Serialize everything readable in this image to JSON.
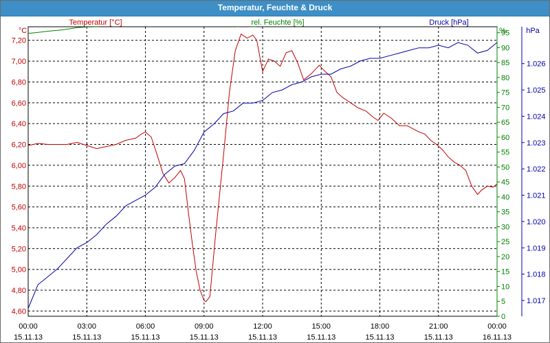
{
  "window": {
    "title": "Temperatur, Feuchte & Druck"
  },
  "chart_data": {
    "type": "line",
    "title": "Temperatur, Feuchte & Druck",
    "grid": true,
    "x_tick_labels": [
      {
        "time": "00:00",
        "date": "15.11.13"
      },
      {
        "time": "03:00",
        "date": "15.11.13"
      },
      {
        "time": "06:00",
        "date": "15.11.13"
      },
      {
        "time": "09:00",
        "date": "15.11.13"
      },
      {
        "time": "12:00",
        "date": "15.11.13"
      },
      {
        "time": "15:00",
        "date": "15.11.13"
      },
      {
        "time": "18:00",
        "date": "15.11.13"
      },
      {
        "time": "21:00",
        "date": "15.11.13"
      },
      {
        "time": "00:00",
        "date": "16.11.13"
      }
    ],
    "xlim": [
      0,
      24
    ],
    "axes": {
      "temperature": {
        "unit": "°C",
        "color": "#c00000",
        "ylim": [
          4.55,
          7.33
        ],
        "ticks": [
          "7,20",
          "7,00",
          "6,80",
          "6,60",
          "6,40",
          "6,20",
          "6,00",
          "5,80",
          "5,60",
          "5,40",
          "5,20",
          "5,00",
          "4,80",
          "4,60"
        ]
      },
      "humidity": {
        "unit": "%",
        "color": "#008000",
        "ylim": [
          0,
          97
        ],
        "ticks": [
          "95",
          "90",
          "85",
          "80",
          "75",
          "70",
          "65",
          "60",
          "55",
          "50",
          "45",
          "40",
          "35",
          "30",
          "25",
          "20",
          "15",
          "10",
          "5",
          "0"
        ]
      },
      "pressure": {
        "unit": "hPa",
        "color": "#0000aa",
        "ylim": [
          1.0164,
          1.0274
        ],
        "ticks": [
          "1.026",
          "1.025",
          "1.024",
          "1.023",
          "1.022",
          "1.021",
          "1.020",
          "1.019",
          "1.018",
          "1.017"
        ]
      }
    },
    "series": [
      {
        "name": "Temperatur [°C]",
        "axis": "temperature",
        "color": "#c00000",
        "x": [
          0,
          0.5,
          1,
          1.5,
          2,
          2.5,
          3,
          3.5,
          4,
          4.5,
          5,
          5.5,
          5.8,
          6,
          6.3,
          6.6,
          6.9,
          7.2,
          7.5,
          7.8,
          8,
          8.2,
          8.4,
          8.6,
          8.8,
          9,
          9.1,
          9.3,
          9.6,
          10,
          10.3,
          10.6,
          10.9,
          11.2,
          11.5,
          11.7,
          12,
          12.3,
          12.6,
          12.9,
          13.2,
          13.5,
          13.8,
          14.1,
          14.5,
          14.9,
          15.2,
          15.5,
          15.8,
          16.1,
          16.5,
          16.9,
          17.3,
          17.6,
          17.9,
          18.2,
          18.6,
          19,
          19.4,
          19.7,
          20,
          20.3,
          20.6,
          20.9,
          21.2,
          21.5,
          21.8,
          22.1,
          22.4,
          22.7,
          23,
          23.2,
          23.5,
          23.8,
          24
        ],
        "values": [
          6.19,
          6.21,
          6.2,
          6.2,
          6.2,
          6.22,
          6.19,
          6.16,
          6.18,
          6.2,
          6.24,
          6.26,
          6.3,
          6.32,
          6.27,
          6.1,
          5.92,
          5.83,
          5.88,
          5.95,
          5.87,
          5.55,
          5.25,
          4.98,
          4.8,
          4.7,
          4.69,
          4.74,
          5.35,
          6.1,
          6.7,
          7.1,
          7.26,
          7.22,
          7.25,
          7.2,
          6.9,
          7.02,
          7.0,
          6.95,
          7.08,
          7.1,
          6.98,
          6.82,
          6.88,
          6.96,
          6.9,
          6.85,
          6.7,
          6.65,
          6.6,
          6.55,
          6.52,
          6.47,
          6.43,
          6.5,
          6.45,
          6.38,
          6.38,
          6.35,
          6.32,
          6.3,
          6.24,
          6.2,
          6.15,
          6.08,
          6.03,
          6.0,
          5.95,
          5.8,
          5.72,
          5.76,
          5.8,
          5.79,
          5.82
        ]
      },
      {
        "name": "rel. Feuchte [%]",
        "axis": "humidity",
        "color": "#008000",
        "x": [
          0,
          0.5,
          1,
          1.5,
          2,
          2.5,
          3,
          3.5,
          4,
          4.5,
          5,
          5.5,
          6,
          6.3,
          10.1,
          10.4,
          10.6,
          10.9,
          11.3,
          11.6,
          11.9,
          12.2,
          12.5,
          12.8,
          13.1,
          13.4,
          13.7,
          13.9
        ],
        "values": [
          94.8,
          95.1,
          95.5,
          95.8,
          96.2,
          96.7,
          96.9,
          97.0,
          97.2,
          97.5,
          97.6,
          97.7,
          97.9,
          98.3,
          98.2,
          97.6,
          96.9,
          97.2,
          97.1,
          97.0,
          97.3,
          97.6,
          97.3,
          97.4,
          97.5,
          97.6,
          97.7,
          97.9
        ]
      },
      {
        "name": "Druck [hPa]",
        "axis": "pressure",
        "color": "#0000aa",
        "x": [
          0,
          0.5,
          1,
          1.5,
          2,
          2.5,
          3,
          3.5,
          4,
          4.5,
          5,
          5.5,
          6,
          6.5,
          7,
          7.5,
          8,
          8.5,
          9,
          9.5,
          10,
          10.5,
          11,
          11.5,
          12,
          12.5,
          13,
          13.5,
          14,
          14.5,
          15,
          15.5,
          16,
          16.5,
          17,
          17.5,
          18,
          18.5,
          19,
          19.5,
          20,
          20.5,
          21,
          21.5,
          22,
          22.5,
          23,
          23.5,
          24
        ],
        "values": [
          1.0167,
          1.0176,
          1.0179,
          1.0182,
          1.0186,
          1.019,
          1.0192,
          1.0195,
          1.0199,
          1.0202,
          1.0206,
          1.0208,
          1.021,
          1.0213,
          1.0218,
          1.0221,
          1.0222,
          1.0227,
          1.0234,
          1.0237,
          1.0241,
          1.0242,
          1.0245,
          1.0245,
          1.0246,
          1.0249,
          1.025,
          1.0252,
          1.0253,
          1.0255,
          1.0256,
          1.0256,
          1.0258,
          1.0259,
          1.0261,
          1.0262,
          1.0262,
          1.0263,
          1.0264,
          1.0265,
          1.0266,
          1.0266,
          1.0267,
          1.0266,
          1.0268,
          1.0267,
          1.0264,
          1.0265,
          1.0268
        ]
      }
    ]
  }
}
